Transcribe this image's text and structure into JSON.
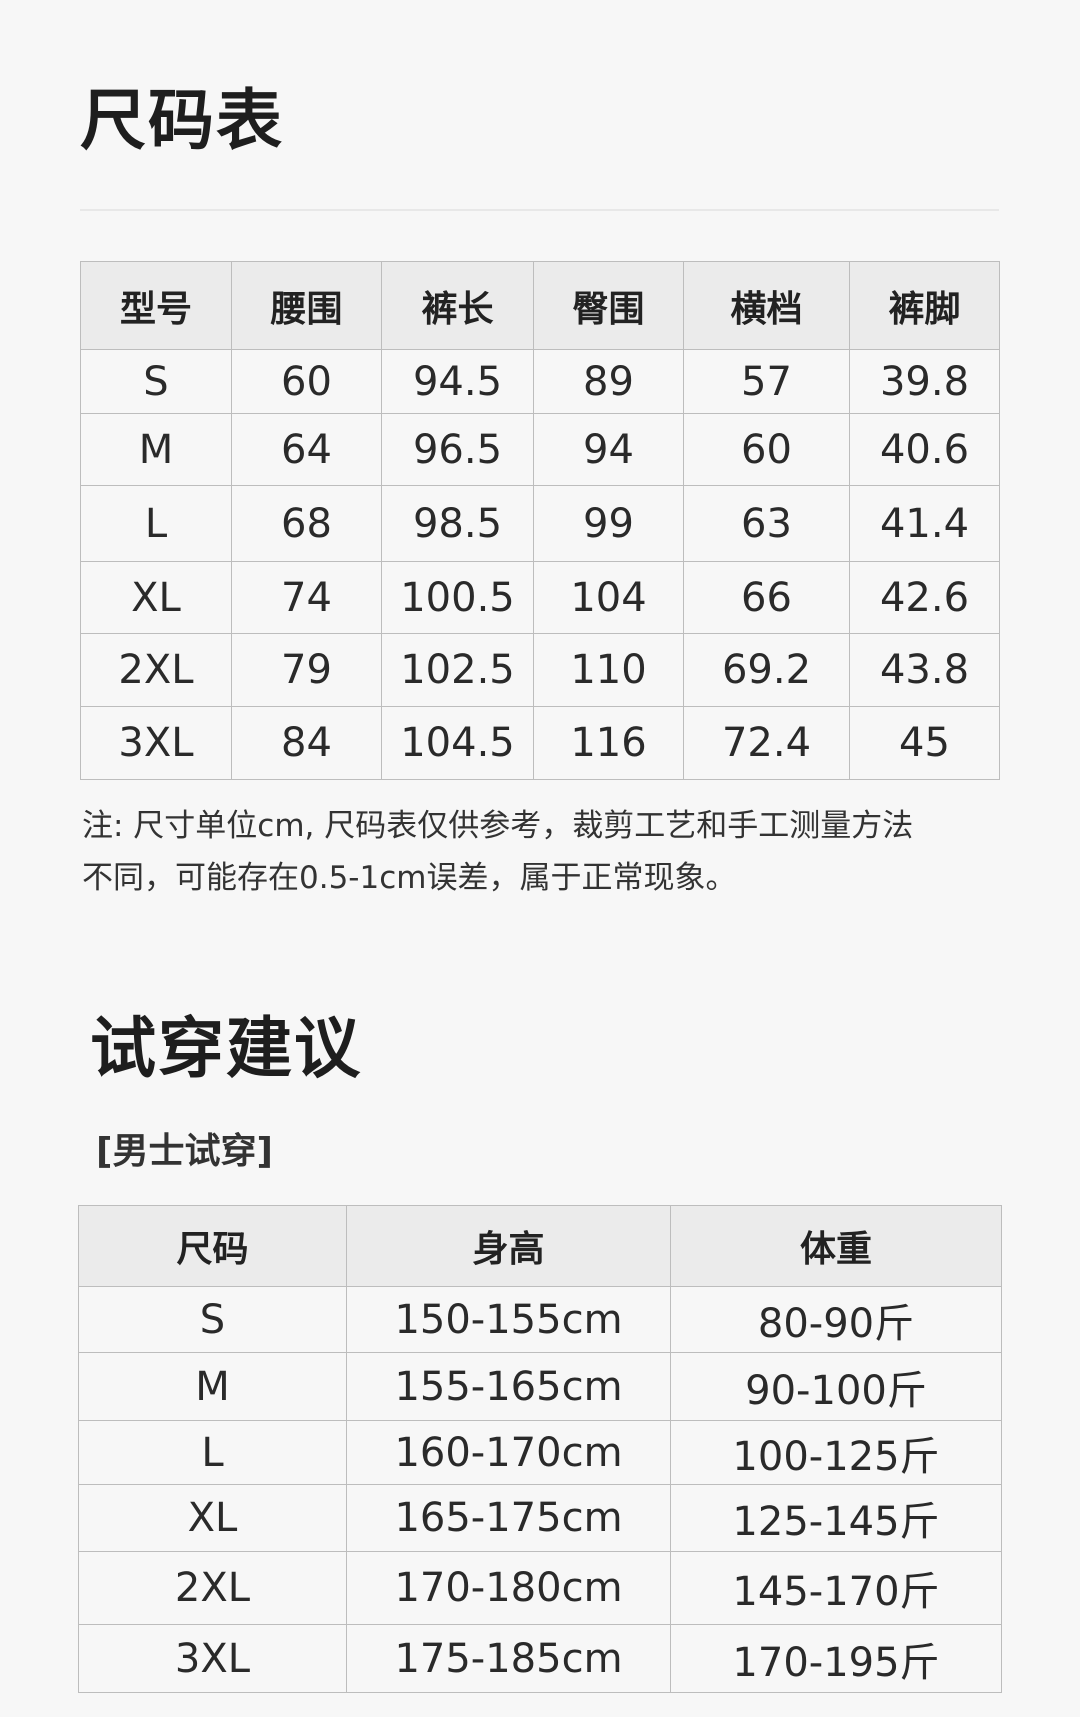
{
  "size_chart": {
    "title": "尺码表",
    "headers": [
      "型号",
      "腰围",
      "裤长",
      "臀围",
      "横档",
      "裤脚"
    ],
    "rows": [
      [
        "S",
        "60",
        "94.5",
        "89",
        "57",
        "39.8"
      ],
      [
        "M",
        "64",
        "96.5",
        "94",
        "60",
        "40.6"
      ],
      [
        "L",
        "68",
        "98.5",
        "99",
        "63",
        "41.4"
      ],
      [
        "XL",
        "74",
        "100.5",
        "104",
        "66",
        "42.6"
      ],
      [
        "2XL",
        "79",
        "102.5",
        "110",
        "69.2",
        "43.8"
      ],
      [
        "3XL",
        "84",
        "104.5",
        "116",
        "72.4",
        "45"
      ]
    ],
    "note_line1": "注: 尺寸单位cm, 尺码表仅供参考，裁剪工艺和手工测量方法",
    "note_line2": "不同，可能存在0.5-1cm误差，属于正常现象。"
  },
  "fit_advice": {
    "title": "试穿建议",
    "subtitle": "[男士试穿]",
    "headers": [
      "尺码",
      "身高",
      "体重"
    ],
    "rows": [
      [
        "S",
        "150-155cm",
        "80-90斤"
      ],
      [
        "M",
        "155-165cm",
        "90-100斤"
      ],
      [
        "L",
        "160-170cm",
        "100-125斤"
      ],
      [
        "XL",
        "165-175cm",
        "125-145斤"
      ],
      [
        "2XL",
        "170-180cm",
        "145-170斤"
      ],
      [
        "3XL",
        "175-185cm",
        "170-195斤"
      ]
    ]
  }
}
